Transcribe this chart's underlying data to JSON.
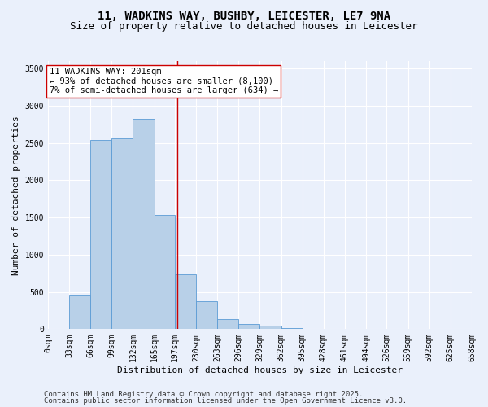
{
  "title1": "11, WADKINS WAY, BUSHBY, LEICESTER, LE7 9NA",
  "title2": "Size of property relative to detached houses in Leicester",
  "xlabel": "Distribution of detached houses by size in Leicester",
  "ylabel": "Number of detached properties",
  "annotation_title": "11 WADKINS WAY: 201sqm",
  "annotation_line1": "← 93% of detached houses are smaller (8,100)",
  "annotation_line2": "7% of semi-detached houses are larger (634) →",
  "property_size": 201,
  "bin_edges": [
    0,
    33,
    66,
    99,
    132,
    165,
    197,
    230,
    263,
    296,
    329,
    362,
    395,
    428,
    461,
    494,
    526,
    559,
    592,
    625,
    658
  ],
  "bin_counts": [
    5,
    450,
    2540,
    2560,
    2820,
    1530,
    740,
    380,
    140,
    70,
    50,
    15,
    5,
    2,
    2,
    2,
    1,
    0,
    0,
    0
  ],
  "bar_color": "#b8d0e8",
  "bar_edge_color": "#5b9bd5",
  "vline_color": "#cc0000",
  "vline_x": 201,
  "annotation_box_facecolor": "#ffffff",
  "annotation_box_edgecolor": "#cc0000",
  "background_color": "#eaf0fb",
  "plot_bg_color": "#eaf0fb",
  "ylim": [
    0,
    3600
  ],
  "yticks": [
    0,
    500,
    1000,
    1500,
    2000,
    2500,
    3000,
    3500
  ],
  "footer1": "Contains HM Land Registry data © Crown copyright and database right 2025.",
  "footer2": "Contains public sector information licensed under the Open Government Licence v3.0.",
  "title_fontsize": 10,
  "subtitle_fontsize": 9,
  "axis_label_fontsize": 8,
  "tick_fontsize": 7,
  "annotation_fontsize": 7.5,
  "footer_fontsize": 6.5
}
